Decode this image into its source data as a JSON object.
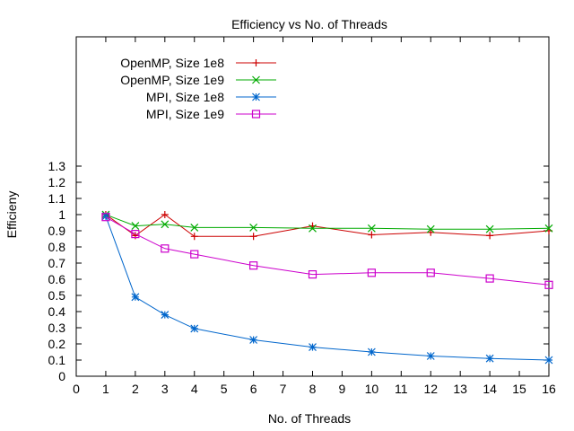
{
  "chart_data": {
    "type": "line",
    "title": "Efficiency vs No. of Threads",
    "xlabel": "No. of Threads",
    "ylabel": "Efficieny",
    "xlim": [
      0,
      16
    ],
    "ylim": [
      0,
      1.3
    ],
    "xticks": [
      "0",
      "1",
      "2",
      "3",
      "4",
      "5",
      "6",
      "7",
      "8",
      "9",
      "10",
      "11",
      "12",
      "13",
      "14",
      "15",
      "16"
    ],
    "yticks": [
      "0",
      "0.1",
      "0.2",
      "0.3",
      "0.4",
      "0.5",
      "0.6",
      "0.7",
      "0.8",
      "0.9",
      "1",
      "1.1",
      "1.2",
      "1.3"
    ],
    "grid": false,
    "legend_position": "top-left",
    "series": [
      {
        "name": "OpenMP, Size 1e8",
        "color": "#cc0000",
        "marker": "plus",
        "x": [
          1,
          2,
          3,
          4,
          6,
          8,
          10,
          12,
          14,
          16
        ],
        "y": [
          1.0,
          0.87,
          1.0,
          0.865,
          0.865,
          0.93,
          0.875,
          0.89,
          0.87,
          0.9
        ]
      },
      {
        "name": "OpenMP, Size 1e9",
        "color": "#00aa00",
        "marker": "cross",
        "x": [
          1,
          2,
          3,
          4,
          6,
          8,
          10,
          12,
          14,
          16
        ],
        "y": [
          1.0,
          0.93,
          0.94,
          0.92,
          0.92,
          0.915,
          0.915,
          0.91,
          0.91,
          0.915
        ]
      },
      {
        "name": "MPI, Size 1e8",
        "color": "#0066cc",
        "marker": "star",
        "x": [
          1,
          2,
          3,
          4,
          6,
          8,
          10,
          12,
          14,
          16
        ],
        "y": [
          0.99,
          0.49,
          0.38,
          0.295,
          0.225,
          0.18,
          0.15,
          0.125,
          0.11,
          0.1
        ]
      },
      {
        "name": "MPI, Size 1e9",
        "color": "#cc00cc",
        "marker": "square",
        "x": [
          1,
          2,
          3,
          4,
          6,
          8,
          10,
          12,
          14,
          16
        ],
        "y": [
          0.985,
          0.88,
          0.79,
          0.755,
          0.685,
          0.63,
          0.64,
          0.64,
          0.605,
          0.565
        ]
      }
    ]
  }
}
